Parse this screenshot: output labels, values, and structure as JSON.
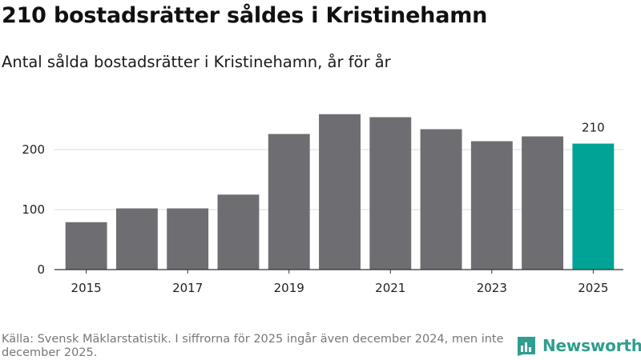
{
  "header": {
    "title": "210 bostadsrätter såldes i Kristinehamn",
    "subtitle": "Antal sålda bostadsrätter i Kristinehamn, år för år"
  },
  "chart_data": {
    "type": "bar",
    "categories": [
      "2015",
      "2016",
      "2017",
      "2018",
      "2019",
      "2020",
      "2021",
      "2022",
      "2023",
      "2024",
      "2025"
    ],
    "values": [
      79,
      102,
      102,
      125,
      226,
      259,
      254,
      234,
      214,
      222,
      210
    ],
    "x_tick_labels": [
      "2015",
      "2017",
      "2019",
      "2021",
      "2023",
      "2025"
    ],
    "y_ticks": [
      0,
      100,
      200
    ],
    "ylim": [
      0,
      280
    ],
    "highlight_index": 10,
    "highlight_label": "210",
    "grid": true,
    "xlabel": "",
    "ylabel": ""
  },
  "colors": {
    "bar": "#6e6d72",
    "highlight": "#00a396",
    "grid": "#dddddd",
    "axis": "#333333",
    "logo": "#2f9e8f"
  },
  "footer": {
    "source": "Källa: Svensk Mäklarstatistik. I siffrorna för 2025 ingår även december 2024, men inte december 2025.",
    "brand": "Newsworthy"
  },
  "icons": {
    "logo": "bar-chart-logo-icon"
  }
}
